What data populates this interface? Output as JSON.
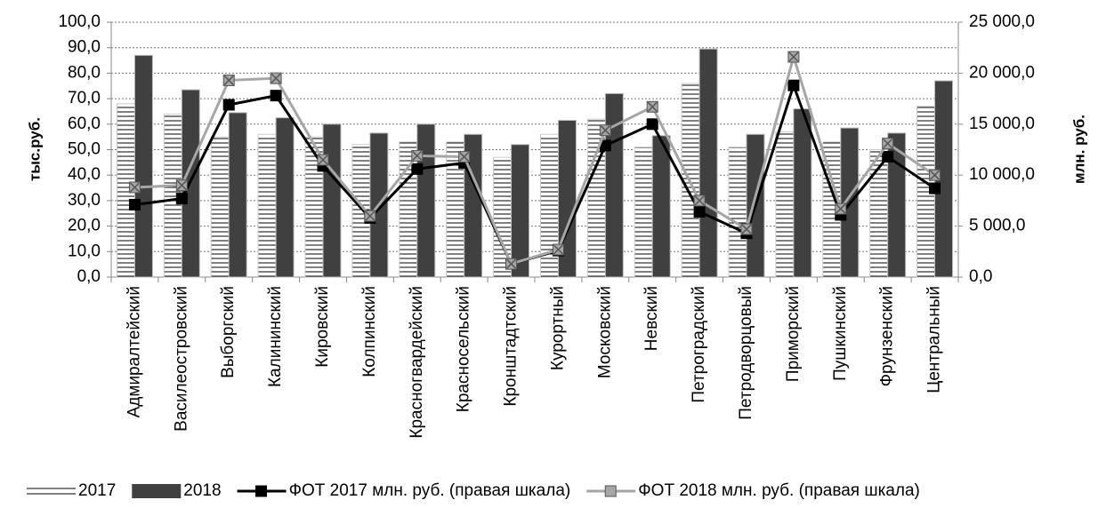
{
  "chart_data": {
    "type": "bar",
    "ylabel": "тыс.руб.",
    "y2label": "млн. руб.",
    "categories": [
      "Адмиралтейский",
      "Василеостровский",
      "Выборгский",
      "Калининский",
      "Кировский",
      "Колпинский",
      "Красногвардейский",
      "Красносельский",
      "Кронштадтский",
      "Курортный",
      "Московский",
      "Невский",
      "Петроградский",
      "Петродворцовый",
      "Приморский",
      "Пушкинский",
      "Фрунзенский",
      "Центральный"
    ],
    "series": [
      {
        "name": "2017",
        "type": "bar",
        "color": "#ffffff",
        "values": [
          68,
          64,
          55,
          56,
          55,
          52,
          53,
          53,
          47,
          56,
          62,
          51,
          76,
          51,
          57,
          53,
          50,
          67
        ]
      },
      {
        "name": "2018",
        "type": "bar",
        "color": "#404040",
        "values": [
          87,
          73.5,
          64.5,
          62.5,
          60,
          56.5,
          60,
          56,
          52,
          61.5,
          72,
          55.5,
          89.5,
          56,
          66,
          58.5,
          56.5,
          77
        ]
      },
      {
        "name": "ФОТ 2017 млн. руб. (правая шкала)",
        "type": "line",
        "axis": "y2",
        "color": "#000000",
        "values": [
          7100,
          7700,
          16900,
          17800,
          10900,
          5800,
          10600,
          11200,
          1300,
          2600,
          12900,
          15000,
          6400,
          4300,
          18800,
          6100,
          11800,
          8700
        ]
      },
      {
        "name": "ФОТ 2018 млн. руб. (правая шкала)",
        "type": "line",
        "axis": "y2",
        "color": "#a6a6a6",
        "values": [
          8800,
          9000,
          19300,
          19500,
          11500,
          6000,
          11900,
          11800,
          1300,
          2700,
          14400,
          16700,
          7500,
          4700,
          21600,
          6700,
          13100,
          10000
        ]
      }
    ],
    "ylim": [
      0,
      100
    ],
    "yticks": [
      {
        "value": 0,
        "label": "0,0"
      },
      {
        "value": 10,
        "label": "10,0"
      },
      {
        "value": 20,
        "label": "20,0"
      },
      {
        "value": 30,
        "label": "30,0"
      },
      {
        "value": 40,
        "label": "40,0"
      },
      {
        "value": 50,
        "label": "50,0"
      },
      {
        "value": 60,
        "label": "60,0"
      },
      {
        "value": 70,
        "label": "70,0"
      },
      {
        "value": 80,
        "label": "80,0"
      },
      {
        "value": 90,
        "label": "90,0"
      },
      {
        "value": 100,
        "label": "100,0"
      }
    ],
    "y2lim": [
      0,
      25000
    ],
    "y2ticks": [
      {
        "value": 0,
        "label": "0,0"
      },
      {
        "value": 5000,
        "label": "5 000,0"
      },
      {
        "value": 10000,
        "label": "10 000,0"
      },
      {
        "value": 15000,
        "label": "15 000,0"
      },
      {
        "value": 20000,
        "label": "20 000,0"
      },
      {
        "value": 25000,
        "label": "25 000,0"
      }
    ],
    "grid": true,
    "legend": "bottom"
  }
}
